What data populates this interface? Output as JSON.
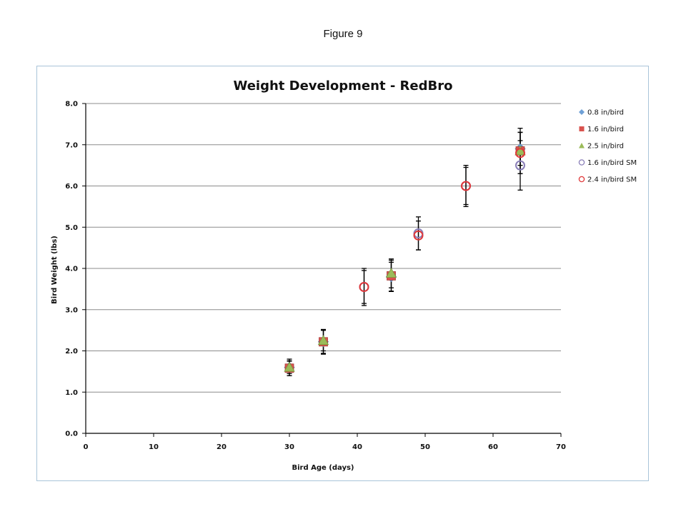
{
  "figure": {
    "caption": "Figure 9"
  },
  "chart_data": {
    "type": "scatter",
    "title": "Weight Development - RedBro",
    "xlabel": "Bird Age (days)",
    "ylabel": "Bird Weight (lbs)",
    "xlim": [
      0,
      70
    ],
    "ylim": [
      0,
      8
    ],
    "x_ticks": [
      "0",
      "10",
      "20",
      "30",
      "40",
      "50",
      "60",
      "70"
    ],
    "y_ticks": [
      "0.0",
      "1.0",
      "2.0",
      "3.0",
      "4.0",
      "5.0",
      "6.0",
      "7.0",
      "8.0"
    ],
    "grid": "horizontal",
    "legend_position": "right",
    "series": [
      {
        "name": "0.8 in/bird",
        "marker": "diamond",
        "color": "#6fa0d6",
        "filled": true,
        "points": [
          {
            "x": 30,
            "y": 1.6,
            "err": 0.2
          },
          {
            "x": 35,
            "y": 2.22,
            "err": 0.3
          },
          {
            "x": 45,
            "y": 3.8,
            "err": 0.35
          },
          {
            "x": 64,
            "y": 6.9,
            "err": 0.4
          }
        ]
      },
      {
        "name": "1.6 in/bird",
        "marker": "square",
        "color": "#d9534f",
        "filled": true,
        "points": [
          {
            "x": 30,
            "y": 1.58,
            "err": 0.18
          },
          {
            "x": 35,
            "y": 2.22,
            "err": 0.28
          },
          {
            "x": 45,
            "y": 3.82,
            "err": 0.38
          },
          {
            "x": 64,
            "y": 6.85,
            "err": 0.45
          }
        ]
      },
      {
        "name": "2.5 in/bird",
        "marker": "triangle",
        "color": "#9bbb59",
        "filled": true,
        "points": [
          {
            "x": 30,
            "y": 1.6,
            "err": 0.15
          },
          {
            "x": 35,
            "y": 2.25,
            "err": 0.25
          },
          {
            "x": 45,
            "y": 3.88,
            "err": 0.35
          },
          {
            "x": 64,
            "y": 6.85,
            "err": 0.55
          }
        ]
      },
      {
        "name": "1.6 in/bird SM",
        "marker": "circle",
        "color": "#8a7fb8",
        "filled": false,
        "points": [
          {
            "x": 41,
            "y": 3.55,
            "err": 0.45
          },
          {
            "x": 49,
            "y": 4.85,
            "err": 0.4
          },
          {
            "x": 56,
            "y": 6.0,
            "err": 0.5
          },
          {
            "x": 64,
            "y": 6.5,
            "err": 0.6
          }
        ]
      },
      {
        "name": "2.4 in/bird SM",
        "marker": "circle",
        "color": "#e0383a",
        "filled": false,
        "points": [
          {
            "x": 41,
            "y": 3.55,
            "err": 0.4
          },
          {
            "x": 49,
            "y": 4.8,
            "err": 0.35
          },
          {
            "x": 56,
            "y": 6.0,
            "err": 0.45
          },
          {
            "x": 64,
            "y": 6.8,
            "err": 0.5
          }
        ]
      }
    ]
  }
}
